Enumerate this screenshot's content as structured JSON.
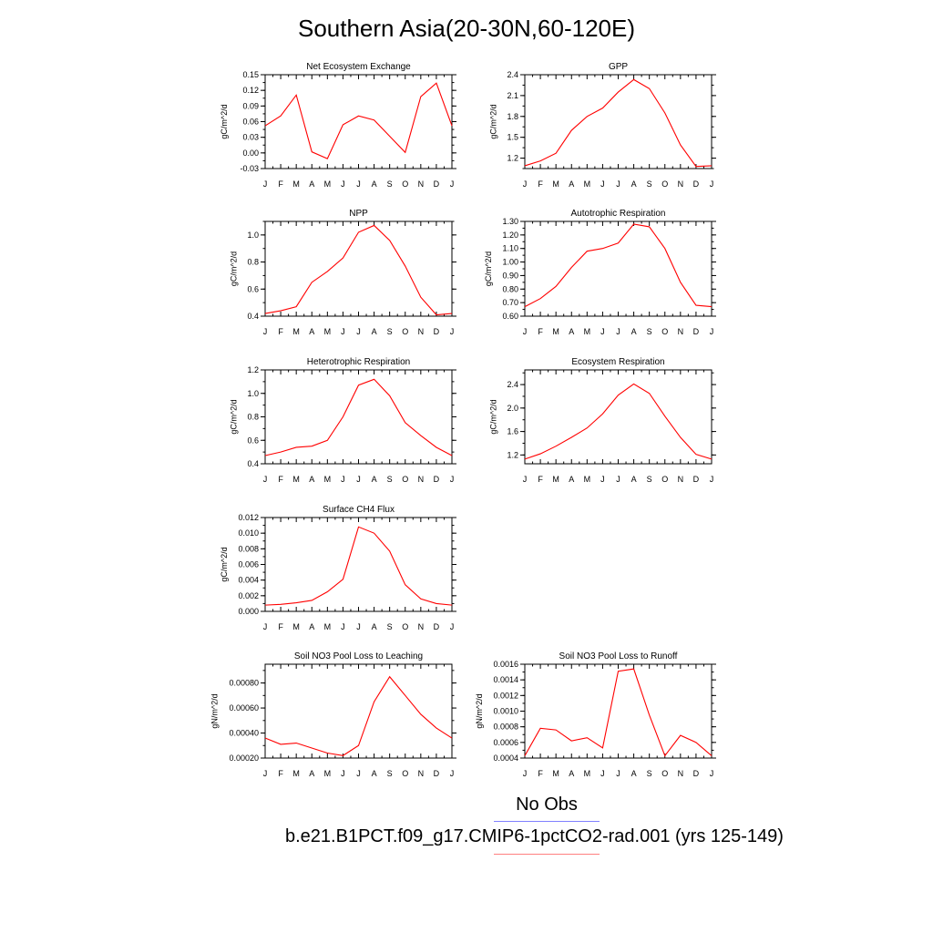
{
  "title": "Southern Asia(20-30N,60-120E)",
  "legend": {
    "entries": [
      {
        "label": "No Obs",
        "color": "#8080ff"
      },
      {
        "label": "b.e21.B1PCT.f09_g17.CMIP6-1pctCO2-rad.001 (yrs 125-149)",
        "color": "#ff8080"
      }
    ]
  },
  "chart_data": [
    {
      "type": "line",
      "title": "Net Ecosystem Exchange",
      "ylabel": "gC/m^2/d",
      "categories": [
        "J",
        "F",
        "M",
        "A",
        "M",
        "J",
        "J",
        "A",
        "S",
        "O",
        "N",
        "D",
        "J"
      ],
      "ylim": [
        -0.03,
        0.15
      ],
      "yticks": [
        "-0.03",
        "0.00",
        "0.03",
        "0.06",
        "0.09",
        "0.12",
        "0.15"
      ],
      "series": [
        {
          "color": "#ff0000",
          "values": [
            0.052,
            0.071,
            0.111,
            0.002,
            -0.011,
            0.054,
            0.071,
            0.063,
            0.032,
            0.001,
            0.108,
            0.134,
            0.052
          ]
        }
      ]
    },
    {
      "type": "line",
      "title": "GPP",
      "ylabel": "gC/m^2/d",
      "categories": [
        "J",
        "F",
        "M",
        "A",
        "M",
        "J",
        "J",
        "A",
        "S",
        "O",
        "N",
        "D",
        "J"
      ],
      "ylim": [
        1.05,
        2.4
      ],
      "yticks": [
        "1.2",
        "1.5",
        "1.8",
        "2.1",
        "2.4"
      ],
      "series": [
        {
          "color": "#ff0000",
          "values": [
            1.09,
            1.16,
            1.27,
            1.6,
            1.8,
            1.92,
            2.15,
            2.33,
            2.2,
            1.85,
            1.39,
            1.08,
            1.09
          ]
        }
      ]
    },
    {
      "type": "line",
      "title": "NPP",
      "ylabel": "gC/m^2/d",
      "categories": [
        "J",
        "F",
        "M",
        "A",
        "M",
        "J",
        "J",
        "A",
        "S",
        "O",
        "N",
        "D",
        "J"
      ],
      "ylim": [
        0.4,
        1.1
      ],
      "yticks": [
        "0.4",
        "0.6",
        "0.8",
        "1.0"
      ],
      "series": [
        {
          "color": "#ff0000",
          "values": [
            0.42,
            0.44,
            0.47,
            0.65,
            0.73,
            0.83,
            1.02,
            1.07,
            0.96,
            0.77,
            0.54,
            0.41,
            0.42
          ]
        }
      ]
    },
    {
      "type": "line",
      "title": "Autotrophic Respiration",
      "ylabel": "gC/m^2/d",
      "categories": [
        "J",
        "F",
        "M",
        "A",
        "M",
        "J",
        "J",
        "A",
        "S",
        "O",
        "N",
        "D",
        "J"
      ],
      "ylim": [
        0.6,
        1.3
      ],
      "yticks": [
        "0.60",
        "0.70",
        "0.80",
        "0.90",
        "1.00",
        "1.10",
        "1.20",
        "1.30"
      ],
      "series": [
        {
          "color": "#ff0000",
          "values": [
            0.67,
            0.73,
            0.82,
            0.96,
            1.08,
            1.1,
            1.14,
            1.28,
            1.26,
            1.1,
            0.85,
            0.68,
            0.67
          ]
        }
      ]
    },
    {
      "type": "line",
      "title": "Heterotrophic Respiration",
      "ylabel": "gC/m^2/d",
      "categories": [
        "J",
        "F",
        "M",
        "A",
        "M",
        "J",
        "J",
        "A",
        "S",
        "O",
        "N",
        "D",
        "J"
      ],
      "ylim": [
        0.4,
        1.2
      ],
      "yticks": [
        "0.4",
        "0.6",
        "0.8",
        "1.0",
        "1.2"
      ],
      "series": [
        {
          "color": "#ff0000",
          "values": [
            0.47,
            0.5,
            0.54,
            0.55,
            0.6,
            0.8,
            1.07,
            1.12,
            0.98,
            0.75,
            0.64,
            0.54,
            0.47
          ]
        }
      ]
    },
    {
      "type": "line",
      "title": "Ecosystem Respiration",
      "ylabel": "gC/m^2/d",
      "categories": [
        "J",
        "F",
        "M",
        "A",
        "M",
        "J",
        "J",
        "A",
        "S",
        "O",
        "N",
        "D",
        "J"
      ],
      "ylim": [
        1.05,
        2.65
      ],
      "yticks": [
        "1.2",
        "1.6",
        "2.0",
        "2.4"
      ],
      "series": [
        {
          "color": "#ff0000",
          "values": [
            1.13,
            1.22,
            1.35,
            1.5,
            1.66,
            1.9,
            2.22,
            2.41,
            2.25,
            1.86,
            1.5,
            1.21,
            1.13
          ]
        }
      ]
    },
    {
      "type": "line",
      "title": "Surface CH4 Flux",
      "ylabel": "gC/m^2/d",
      "categories": [
        "J",
        "F",
        "M",
        "A",
        "M",
        "J",
        "J",
        "A",
        "S",
        "O",
        "N",
        "D",
        "J"
      ],
      "ylim": [
        0.0,
        0.012
      ],
      "yticks": [
        "0.000",
        "0.002",
        "0.004",
        "0.006",
        "0.008",
        "0.010",
        "0.012"
      ],
      "series": [
        {
          "color": "#ff0000",
          "values": [
            0.0008,
            0.0009,
            0.0011,
            0.0014,
            0.0025,
            0.0041,
            0.0108,
            0.01,
            0.0077,
            0.0034,
            0.0016,
            0.001,
            0.0008
          ]
        }
      ]
    },
    {
      "type": "line",
      "title": "Soil NO3 Pool Loss to Leaching",
      "ylabel": "gN/m^2/d",
      "categories": [
        "J",
        "F",
        "M",
        "A",
        "M",
        "J",
        "J",
        "A",
        "S",
        "O",
        "N",
        "D",
        "J"
      ],
      "ylim": [
        0.0002,
        0.00095
      ],
      "yticks": [
        "0.00020",
        "0.00040",
        "0.00060",
        "0.00080"
      ],
      "series": [
        {
          "color": "#ff0000",
          "values": [
            0.00036,
            0.00031,
            0.00032,
            0.00028,
            0.00024,
            0.00022,
            0.0003,
            0.00065,
            0.00085,
            0.0007,
            0.00055,
            0.00044,
            0.00036
          ]
        }
      ]
    },
    {
      "type": "line",
      "title": "Soil NO3 Pool Loss to Runoff",
      "ylabel": "gN/m^2/d",
      "categories": [
        "J",
        "F",
        "M",
        "A",
        "M",
        "J",
        "J",
        "A",
        "S",
        "O",
        "N",
        "D",
        "J"
      ],
      "ylim": [
        0.0004,
        0.0016
      ],
      "yticks": [
        "0.0004",
        "0.0006",
        "0.0008",
        "0.0010",
        "0.0012",
        "0.0014",
        "0.0016"
      ],
      "series": [
        {
          "color": "#ff0000",
          "values": [
            0.00043,
            0.00078,
            0.00076,
            0.00062,
            0.00066,
            0.00053,
            0.00151,
            0.00154,
            0.00095,
            0.00043,
            0.00069,
            0.0006,
            0.00043
          ]
        }
      ]
    }
  ]
}
